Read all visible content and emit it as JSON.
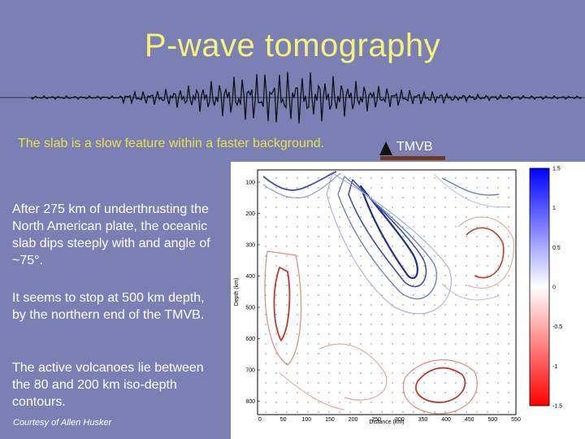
{
  "slide": {
    "title": "P-wave tomography",
    "caption": "The slab is a slow feature within a faster background.",
    "tmvb_label": "TMVB",
    "paragraphs": [
      "After 275 km of underthrusting the North American plate, the oceanic slab dips steeply with and angle of ~75°.",
      "It seems to stop at 500 km depth, by the northern end of the TMVB.",
      "The active volcanoes lie between the 80 and 200 km iso-depth contours."
    ],
    "credit": "Courtesy of Allen Husker"
  },
  "colors": {
    "background": "#7b7fb3",
    "title": "#f4f27a",
    "caption": "#e5e34a",
    "tmvb_bar": "#6b3a1a",
    "fast": "#1f2f8f",
    "slow": "#c0392b"
  },
  "figure": {
    "ylabel": "Depth (km)",
    "xlabel": "Distance (km)",
    "y_ticks": [
      "100",
      "200",
      "300",
      "400",
      "500",
      "600",
      "700",
      "800"
    ],
    "x_ticks": [
      "0",
      "50",
      "100",
      "150",
      "200",
      "250",
      "300",
      "350",
      "400",
      "450",
      "500",
      "550"
    ],
    "colorbar_ticks": [
      "1.5",
      "1",
      "0.5",
      "0",
      "-0.5",
      "-1",
      "-1.5"
    ]
  }
}
